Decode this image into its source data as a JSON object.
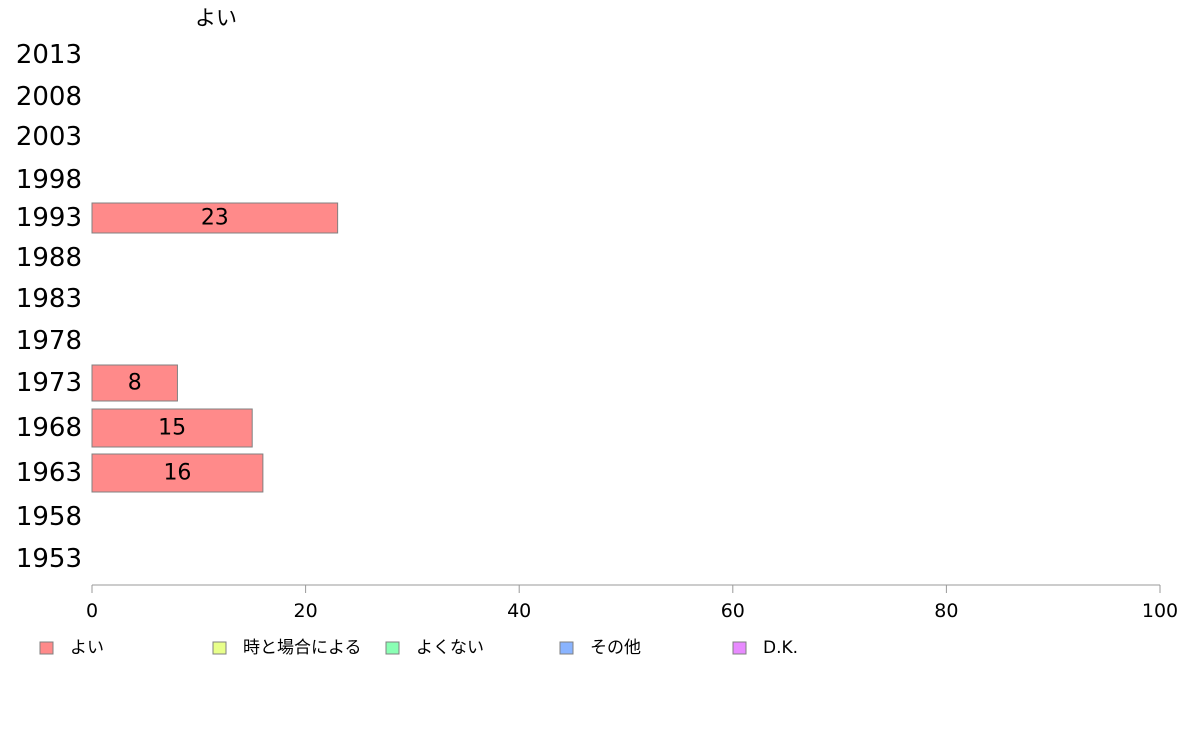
{
  "chart_data": {
    "type": "bar",
    "orientation": "horizontal",
    "title": "よい",
    "categories": [
      "2013",
      "2008",
      "2003",
      "1998",
      "1993",
      "1988",
      "1983",
      "1978",
      "1973",
      "1968",
      "1963",
      "1958",
      "1953"
    ],
    "series": [
      {
        "name": "よい",
        "color": "#ff8a8a",
        "values": [
          null,
          null,
          null,
          null,
          23,
          null,
          null,
          null,
          8,
          15,
          16,
          null,
          null
        ]
      }
    ],
    "xlim": [
      0,
      100
    ],
    "xticks": [
      0,
      20,
      40,
      60,
      80,
      100
    ],
    "grid": false,
    "legend_placement": "bottom",
    "legend": [
      {
        "label": "よい",
        "color": "#ff8a8a"
      },
      {
        "label": "時と場合による",
        "color": "#e8ff8a"
      },
      {
        "label": "よくない",
        "color": "#8affb4"
      },
      {
        "label": "その他",
        "color": "#8ab4ff"
      },
      {
        "label": "D.K.",
        "color": "#e88aff"
      }
    ]
  }
}
